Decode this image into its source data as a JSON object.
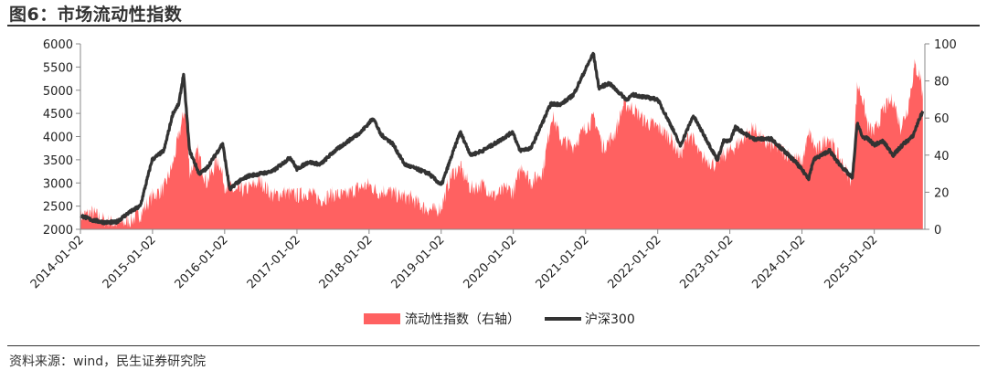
{
  "figure": {
    "title": "图6：市场流动性指数",
    "source": "资料来源：wind，民生证券研究院"
  },
  "colors": {
    "liquidity": "#ff6161",
    "hs300": "#333333",
    "axis": "#888888"
  },
  "chart_data": {
    "type": "line",
    "title": "图6：市场流动性指数",
    "legend_position": "bottom-center",
    "grid": false,
    "x_ticks": [
      "2014-01-02",
      "2015-01-02",
      "2016-01-02",
      "2017-01-02",
      "2018-01-02",
      "2019-01-02",
      "2020-01-02",
      "2021-01-02",
      "2022-01-02",
      "2023-01-02",
      "2024-01-02",
      "2025-01-02"
    ],
    "y_left": {
      "ylim": [
        2000,
        6000
      ],
      "ticks": [
        "2000",
        "2500",
        "3000",
        "3500",
        "4000",
        "4500",
        "5000",
        "5500",
        "6000"
      ]
    },
    "y_right": {
      "ylim": [
        0,
        100
      ],
      "ticks": [
        "0",
        "20",
        "40",
        "60",
        "80",
        "100"
      ]
    },
    "series": [
      {
        "name": "流动性指数（右轴）",
        "axis": "right",
        "type": "area",
        "points": [
          [
            "2014-01-02",
            7
          ],
          [
            "2014-03-01",
            9
          ],
          [
            "2014-05-01",
            5
          ],
          [
            "2014-07-01",
            3
          ],
          [
            "2014-09-01",
            4
          ],
          [
            "2014-11-01",
            8
          ],
          [
            "2015-01-02",
            18
          ],
          [
            "2015-03-01",
            22
          ],
          [
            "2015-04-15",
            35
          ],
          [
            "2015-05-10",
            48
          ],
          [
            "2015-06-15",
            65
          ],
          [
            "2015-07-10",
            30
          ],
          [
            "2015-08-20",
            42
          ],
          [
            "2015-10-01",
            25
          ],
          [
            "2015-12-01",
            38
          ],
          [
            "2016-01-02",
            24
          ],
          [
            "2016-03-01",
            20
          ],
          [
            "2016-05-01",
            22
          ],
          [
            "2016-07-01",
            26
          ],
          [
            "2016-09-01",
            18
          ],
          [
            "2016-11-01",
            20
          ],
          [
            "2017-01-02",
            18
          ],
          [
            "2017-03-01",
            20
          ],
          [
            "2017-05-01",
            16
          ],
          [
            "2017-07-01",
            19
          ],
          [
            "2017-09-01",
            18
          ],
          [
            "2017-11-01",
            22
          ],
          [
            "2018-01-02",
            24
          ],
          [
            "2018-02-15",
            20
          ],
          [
            "2018-04-01",
            21
          ],
          [
            "2018-06-01",
            18
          ],
          [
            "2018-08-01",
            17
          ],
          [
            "2018-10-01",
            12
          ],
          [
            "2018-12-01",
            10
          ],
          [
            "2019-01-02",
            12
          ],
          [
            "2019-02-25",
            30
          ],
          [
            "2019-04-10",
            33
          ],
          [
            "2019-06-01",
            22
          ],
          [
            "2019-08-01",
            24
          ],
          [
            "2019-10-01",
            18
          ],
          [
            "2019-12-01",
            22
          ],
          [
            "2020-01-02",
            20
          ],
          [
            "2020-02-15",
            35
          ],
          [
            "2020-04-01",
            25
          ],
          [
            "2020-06-01",
            32
          ],
          [
            "2020-07-15",
            62
          ],
          [
            "2020-09-01",
            48
          ],
          [
            "2020-11-01",
            45
          ],
          [
            "2021-01-02",
            55
          ],
          [
            "2021-02-15",
            60
          ],
          [
            "2021-04-01",
            44
          ],
          [
            "2021-06-01",
            52
          ],
          [
            "2021-07-15",
            68
          ],
          [
            "2021-09-01",
            65
          ],
          [
            "2021-11-01",
            58
          ],
          [
            "2022-01-02",
            55
          ],
          [
            "2022-03-01",
            50
          ],
          [
            "2022-04-26",
            40
          ],
          [
            "2022-06-15",
            52
          ],
          [
            "2022-08-01",
            40
          ],
          [
            "2022-10-15",
            35
          ],
          [
            "2022-12-01",
            40
          ],
          [
            "2023-01-02",
            42
          ],
          [
            "2023-03-01",
            48
          ],
          [
            "2023-05-01",
            55
          ],
          [
            "2023-07-01",
            46
          ],
          [
            "2023-09-01",
            44
          ],
          [
            "2023-11-01",
            40
          ],
          [
            "2024-01-02",
            36
          ],
          [
            "2024-02-08",
            52
          ],
          [
            "2024-03-15",
            42
          ],
          [
            "2024-05-15",
            50
          ],
          [
            "2024-07-01",
            40
          ],
          [
            "2024-09-10",
            26
          ],
          [
            "2024-10-08",
            78
          ],
          [
            "2024-11-01",
            72
          ],
          [
            "2024-12-01",
            55
          ],
          [
            "2025-01-02",
            52
          ],
          [
            "2025-02-20",
            65
          ],
          [
            "2025-04-08",
            70
          ],
          [
            "2025-05-15",
            55
          ],
          [
            "2025-06-20",
            65
          ],
          [
            "2025-07-25",
            88
          ],
          [
            "2025-08-25",
            82
          ],
          [
            "2025-09-05",
            70
          ]
        ]
      },
      {
        "name": "沪深300",
        "axis": "left",
        "type": "line",
        "points": [
          [
            "2014-01-02",
            2300
          ],
          [
            "2014-03-01",
            2200
          ],
          [
            "2014-05-01",
            2150
          ],
          [
            "2014-07-01",
            2150
          ],
          [
            "2014-09-01",
            2350
          ],
          [
            "2014-11-01",
            2500
          ],
          [
            "2014-12-31",
            3500
          ],
          [
            "2015-03-01",
            3700
          ],
          [
            "2015-04-15",
            4500
          ],
          [
            "2015-05-15",
            4700
          ],
          [
            "2015-06-08",
            5350
          ],
          [
            "2015-07-08",
            3700
          ],
          [
            "2015-08-26",
            3200
          ],
          [
            "2015-10-01",
            3300
          ],
          [
            "2015-12-23",
            3850
          ],
          [
            "2016-01-28",
            2850
          ],
          [
            "2016-03-01",
            3000
          ],
          [
            "2016-05-01",
            3150
          ],
          [
            "2016-07-01",
            3200
          ],
          [
            "2016-09-01",
            3250
          ],
          [
            "2016-11-29",
            3550
          ],
          [
            "2017-01-02",
            3300
          ],
          [
            "2017-03-01",
            3450
          ],
          [
            "2017-05-01",
            3400
          ],
          [
            "2017-07-01",
            3650
          ],
          [
            "2017-09-01",
            3850
          ],
          [
            "2017-11-22",
            4100
          ],
          [
            "2018-01-24",
            4400
          ],
          [
            "2018-03-01",
            4050
          ],
          [
            "2018-05-01",
            3850
          ],
          [
            "2018-07-01",
            3400
          ],
          [
            "2018-09-01",
            3300
          ],
          [
            "2018-11-01",
            3200
          ],
          [
            "2019-01-03",
            2950
          ],
          [
            "2019-04-08",
            4100
          ],
          [
            "2019-06-01",
            3600
          ],
          [
            "2019-08-01",
            3700
          ],
          [
            "2019-10-01",
            3850
          ],
          [
            "2019-12-31",
            4100
          ],
          [
            "2020-02-03",
            3700
          ],
          [
            "2020-04-01",
            3750
          ],
          [
            "2020-07-09",
            4700
          ],
          [
            "2020-09-01",
            4700
          ],
          [
            "2020-11-01",
            4900
          ],
          [
            "2021-02-10",
            5800
          ],
          [
            "2021-03-10",
            5050
          ],
          [
            "2021-05-01",
            5150
          ],
          [
            "2021-07-28",
            4800
          ],
          [
            "2021-09-01",
            4900
          ],
          [
            "2021-11-01",
            4850
          ],
          [
            "2022-01-02",
            4800
          ],
          [
            "2022-03-15",
            4200
          ],
          [
            "2022-04-26",
            3800
          ],
          [
            "2022-07-01",
            4450
          ],
          [
            "2022-10-31",
            3500
          ],
          [
            "2022-12-01",
            3900
          ],
          [
            "2023-01-02",
            3900
          ],
          [
            "2023-01-30",
            4200
          ],
          [
            "2023-05-01",
            3950
          ],
          [
            "2023-08-01",
            3950
          ],
          [
            "2023-10-01",
            3700
          ],
          [
            "2023-12-01",
            3450
          ],
          [
            "2024-02-05",
            3100
          ],
          [
            "2024-03-01",
            3500
          ],
          [
            "2024-05-20",
            3700
          ],
          [
            "2024-07-01",
            3450
          ],
          [
            "2024-09-13",
            3100
          ],
          [
            "2024-10-08",
            4300
          ],
          [
            "2024-11-01",
            4000
          ],
          [
            "2024-12-01",
            3950
          ],
          [
            "2025-01-02",
            3820
          ],
          [
            "2025-02-15",
            3900
          ],
          [
            "2025-04-08",
            3600
          ],
          [
            "2025-06-01",
            3850
          ],
          [
            "2025-07-15",
            4000
          ],
          [
            "2025-08-15",
            4350
          ],
          [
            "2025-09-05",
            4550
          ]
        ]
      }
    ]
  }
}
